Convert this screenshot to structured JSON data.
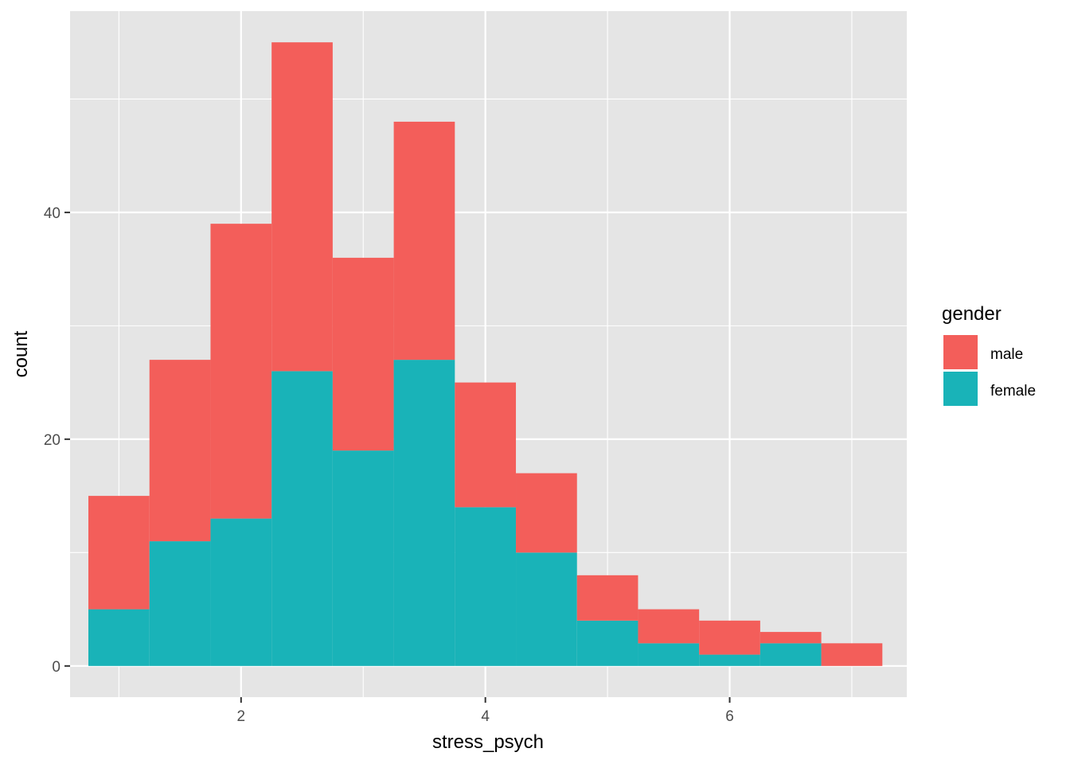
{
  "chart_data": {
    "type": "bar",
    "subtype": "stacked-histogram",
    "title": "",
    "xlabel": "stress_psych",
    "ylabel": "count",
    "xlim": [
      0.6,
      7.45
    ],
    "ylim": [
      -2.75,
      57.75
    ],
    "x_ticks": [
      2,
      4,
      6
    ],
    "x_tick_labels": [
      "2",
      "4",
      "6"
    ],
    "y_ticks": [
      0,
      20,
      40
    ],
    "y_tick_labels": [
      "0",
      "20",
      "40"
    ],
    "grid": true,
    "legend_position": "right",
    "legend_title": "gender",
    "bin_width": 0.5,
    "bin_centers": [
      1.0,
      1.5,
      2.0,
      2.5,
      3.0,
      3.5,
      4.0,
      4.5,
      5.0,
      5.5,
      6.0,
      6.5,
      7.0
    ],
    "series": [
      {
        "name": "male",
        "color": "#F35E5A",
        "values": [
          10,
          16,
          26,
          29,
          17,
          21,
          11,
          7,
          4,
          3,
          3,
          1,
          2
        ]
      },
      {
        "name": "female",
        "color": "#19B3B8",
        "values": [
          5,
          11,
          13,
          26,
          19,
          27,
          14,
          10,
          4,
          2,
          1,
          2,
          0
        ]
      }
    ],
    "totals": [
      15,
      27,
      39,
      55,
      36,
      48,
      25,
      17,
      8,
      5,
      4,
      3,
      2
    ]
  },
  "theme": {
    "panel_background": "#E5E5E5",
    "grid_major_color": "#FFFFFF",
    "tick_label_color": "#4D4D4D"
  }
}
